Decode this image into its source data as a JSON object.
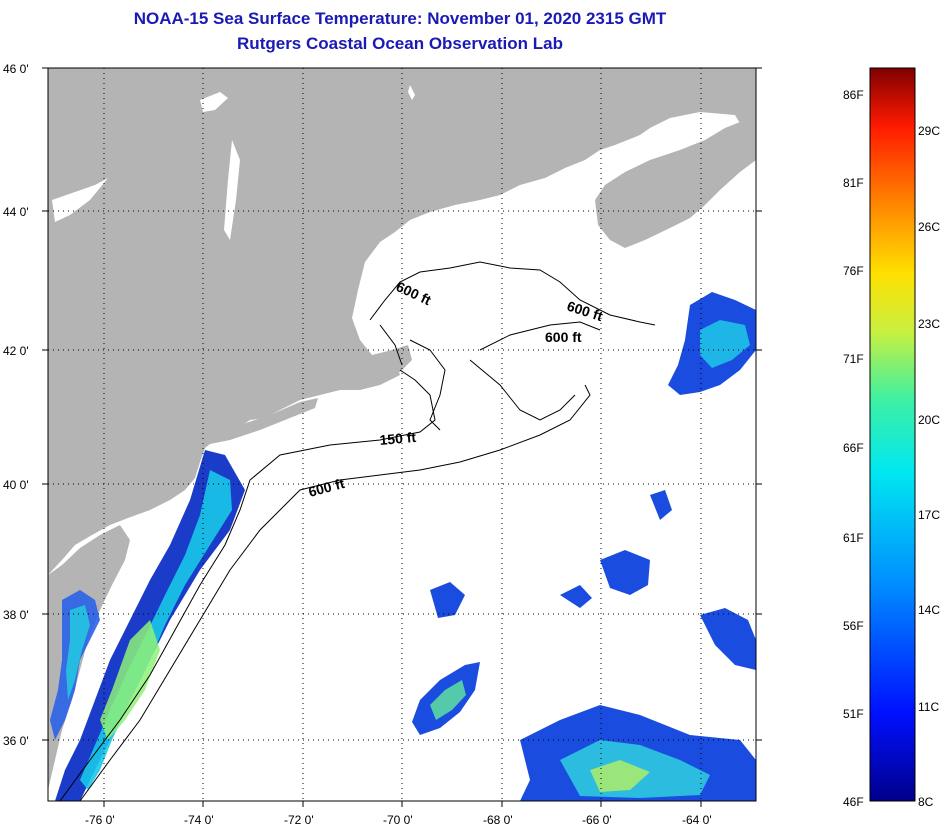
{
  "header": {
    "title": "NOAA-15 Sea Surface Temperature:  November 01, 2020 2315 GMT",
    "subtitle": "Rutgers Coastal Ocean Observation Lab"
  },
  "axes": {
    "lat_labels": [
      "46 0'",
      "44 0'",
      "42 0'",
      "40 0'",
      "38 0'",
      "36 0'"
    ],
    "lon_labels": [
      "-76 0'",
      "-74 0'",
      "-72 0'",
      "-70 0'",
      "-68 0'",
      "-66 0'",
      "-64 0'"
    ]
  },
  "contours": {
    "labels": [
      "600 ft",
      "600 ft",
      "600 ft",
      "150 ft",
      "600 ft"
    ]
  },
  "colorbar": {
    "fahrenheit": [
      "86F",
      "81F",
      "76F",
      "71F",
      "66F",
      "61F",
      "56F",
      "51F",
      "46F"
    ],
    "celsius": [
      "29C",
      "26C",
      "23C",
      "20C",
      "17C",
      "14C",
      "11C",
      "8C"
    ]
  },
  "colors": {
    "land": "#b4b4b4",
    "title": "#1a1ab4",
    "ocean_no_data": "#ffffff"
  }
}
